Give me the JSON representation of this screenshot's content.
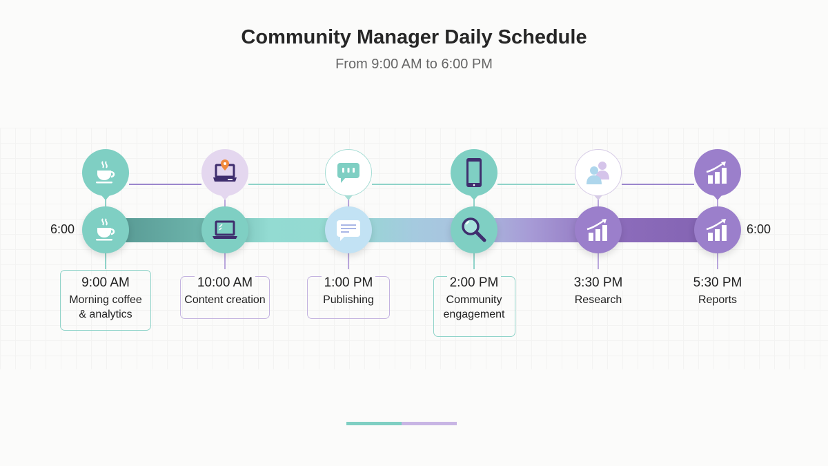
{
  "header": {
    "title": "Community Manager Daily Schedule",
    "subtitle": "From 9:00 AM to 6:00 PM"
  },
  "timeline": {
    "start_label": "6:00",
    "end_label": "6:00",
    "items": [
      {
        "time": "9:00 AM",
        "label": "Morning coffee & analytics",
        "top_icon": "coffee-cup-icon",
        "bottom_icon": "coffee-cup-icon",
        "top_color": "#7fcfc3",
        "bottom_color": "#7fcfc3",
        "box": "teal"
      },
      {
        "time": "10:00 AM",
        "label": "Content creation",
        "top_icon": "laptop-location-pin-icon",
        "bottom_icon": "laptop-icon",
        "top_color": "#e4d7ef",
        "bottom_color": "#7fcfc3",
        "box": "purple"
      },
      {
        "time": "1:00 PM",
        "label": "Publishing",
        "top_icon": "chat-bubble-dots-icon",
        "bottom_icon": "message-icon",
        "top_color": "#ffffff",
        "bottom_color": "#c2e2f4",
        "box": "purple"
      },
      {
        "time": "2:00 PM",
        "label": "Community engagement",
        "top_icon": "smartphone-icon",
        "bottom_icon": "magnifier-icon",
        "top_color": "#7fcfc3",
        "bottom_color": "#7fcfc3",
        "box": "teal"
      },
      {
        "time": "3:30 PM",
        "label": "Research",
        "top_icon": "users-icon",
        "bottom_icon": "growth-chart-icon",
        "top_color": "#ffffff",
        "bottom_color": "#9b7fcb",
        "box": "none"
      },
      {
        "time": "5:30 PM",
        "label": "Reports",
        "top_icon": "growth-chart-icon",
        "bottom_icon": "growth-chart-icon",
        "top_color": "#9b7fcb",
        "bottom_color": "#9b7fcb",
        "box": "none"
      }
    ]
  },
  "colors": {
    "teal": "#7fcfc3",
    "purple": "#9b7fcb",
    "dark_purple": "#3f2e6e"
  }
}
